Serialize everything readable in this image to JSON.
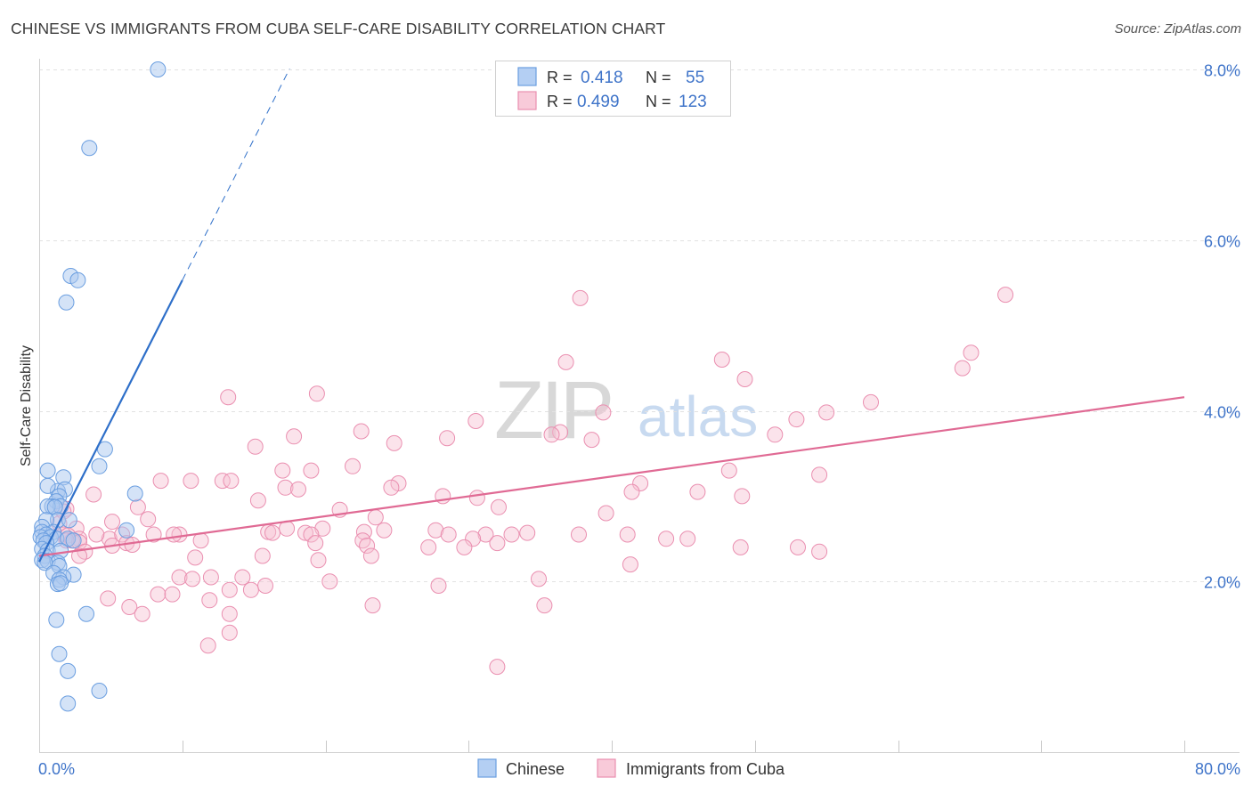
{
  "header": {
    "title": "CHINESE VS IMMIGRANTS FROM CUBA SELF-CARE DISABILITY CORRELATION CHART",
    "source": "Source: ZipAtlas.com"
  },
  "watermark": {
    "zip": "ZIP",
    "atlas": "atlas"
  },
  "legend_box": {
    "rows": [
      {
        "r_label": "R =",
        "r_value": "0.418",
        "n_label": "N =",
        "n_value": "55",
        "series": "Chinese"
      },
      {
        "r_label": "R =",
        "r_value": "0.499",
        "n_label": "N =",
        "n_value": "123",
        "series": "Immigrants from Cuba"
      }
    ]
  },
  "colors": {
    "chinese_fill": "#aac8f0",
    "chinese_stroke": "#6a9ee0",
    "chinese_line": "#2e6fc9",
    "cuba_fill": "#f6c0d2",
    "cuba_stroke": "#ea8fb0",
    "cuba_line": "#e06a94",
    "axis_value": "#3f74c9"
  },
  "chart_data": {
    "type": "scatter",
    "title": "CHINESE VS IMMIGRANTS FROM CUBA SELF-CARE DISABILITY CORRELATION CHART",
    "xlabel": "",
    "ylabel": "Self-Care Disability",
    "xlim": [
      0,
      80
    ],
    "ylim": [
      0,
      8
    ],
    "x_tick_labels": [
      "0.0%",
      "80.0%"
    ],
    "y_ticks": [
      2,
      4,
      6,
      8
    ],
    "y_tick_labels": [
      "2.0%",
      "4.0%",
      "6.0%",
      "8.0%"
    ],
    "grid": true,
    "legend": [
      "Chinese",
      "Immigrants from Cuba"
    ],
    "series": [
      {
        "name": "Chinese",
        "r": 0.418,
        "n": 55,
        "trend": {
          "x": [
            0.0,
            10.0
          ],
          "y": [
            2.23,
            5.53
          ]
        },
        "trend_dashed": {
          "x": [
            10.0,
            17.5
          ],
          "y": [
            5.53,
            8.01
          ]
        },
        "points": [
          [
            8.3,
            8.0
          ],
          [
            3.5,
            7.08
          ],
          [
            2.2,
            5.58
          ],
          [
            2.7,
            5.53
          ],
          [
            1.9,
            5.27
          ],
          [
            4.6,
            3.55
          ],
          [
            4.2,
            3.35
          ],
          [
            0.6,
            3.3
          ],
          [
            1.7,
            3.22
          ],
          [
            6.7,
            3.03
          ],
          [
            1.3,
            3.06
          ],
          [
            1.8,
            3.08
          ],
          [
            0.6,
            3.12
          ],
          [
            1.4,
            3.0
          ],
          [
            1.2,
            2.94
          ],
          [
            0.9,
            2.88
          ],
          [
            1.5,
            2.88
          ],
          [
            0.6,
            2.88
          ],
          [
            1.1,
            2.87
          ],
          [
            1.3,
            2.72
          ],
          [
            0.5,
            2.72
          ],
          [
            2.1,
            2.72
          ],
          [
            0.2,
            2.64
          ],
          [
            0.2,
            2.58
          ],
          [
            1.0,
            2.58
          ],
          [
            6.1,
            2.6
          ],
          [
            0.5,
            2.55
          ],
          [
            0.1,
            2.52
          ],
          [
            0.8,
            2.52
          ],
          [
            1.2,
            2.5
          ],
          [
            2.0,
            2.5
          ],
          [
            0.3,
            2.48
          ],
          [
            2.4,
            2.48
          ],
          [
            0.5,
            2.45
          ],
          [
            0.2,
            2.38
          ],
          [
            0.6,
            2.36
          ],
          [
            1.5,
            2.36
          ],
          [
            0.4,
            2.3
          ],
          [
            0.2,
            2.25
          ],
          [
            0.6,
            2.24
          ],
          [
            1.3,
            2.22
          ],
          [
            0.4,
            2.22
          ],
          [
            1.4,
            2.18
          ],
          [
            1.0,
            2.1
          ],
          [
            2.4,
            2.08
          ],
          [
            1.7,
            2.05
          ],
          [
            1.4,
            2.02
          ],
          [
            1.3,
            1.97
          ],
          [
            1.5,
            1.98
          ],
          [
            3.3,
            1.62
          ],
          [
            1.2,
            1.55
          ],
          [
            1.4,
            1.15
          ],
          [
            2.0,
            0.95
          ],
          [
            4.2,
            0.72
          ],
          [
            2.0,
            0.57
          ]
        ]
      },
      {
        "name": "Immigrants from Cuba",
        "r": 0.499,
        "n": 123,
        "trend": {
          "x": [
            0.0,
            80.0
          ],
          "y": [
            2.3,
            4.16
          ]
        },
        "points": [
          [
            67.5,
            5.36
          ],
          [
            37.8,
            5.32
          ],
          [
            65.1,
            4.68
          ],
          [
            64.5,
            4.5
          ],
          [
            36.8,
            4.57
          ],
          [
            47.7,
            4.6
          ],
          [
            49.3,
            4.37
          ],
          [
            19.4,
            4.2
          ],
          [
            13.2,
            4.16
          ],
          [
            58.1,
            4.1
          ],
          [
            55.0,
            3.98
          ],
          [
            39.4,
            3.98
          ],
          [
            52.9,
            3.9
          ],
          [
            30.5,
            3.88
          ],
          [
            22.5,
            3.76
          ],
          [
            36.4,
            3.75
          ],
          [
            35.8,
            3.72
          ],
          [
            51.4,
            3.72
          ],
          [
            17.8,
            3.7
          ],
          [
            28.5,
            3.68
          ],
          [
            38.6,
            3.66
          ],
          [
            24.8,
            3.62
          ],
          [
            15.1,
            3.58
          ],
          [
            21.9,
            3.35
          ],
          [
            17.0,
            3.3
          ],
          [
            19.0,
            3.3
          ],
          [
            48.2,
            3.3
          ],
          [
            54.5,
            3.25
          ],
          [
            8.5,
            3.18
          ],
          [
            10.6,
            3.18
          ],
          [
            12.8,
            3.18
          ],
          [
            13.4,
            3.18
          ],
          [
            25.1,
            3.15
          ],
          [
            42.0,
            3.15
          ],
          [
            24.6,
            3.1
          ],
          [
            17.2,
            3.1
          ],
          [
            18.1,
            3.08
          ],
          [
            41.4,
            3.05
          ],
          [
            46.0,
            3.05
          ],
          [
            3.8,
            3.02
          ],
          [
            28.2,
            3.0
          ],
          [
            30.6,
            2.98
          ],
          [
            49.1,
            3.0
          ],
          [
            15.3,
            2.95
          ],
          [
            32.1,
            2.87
          ],
          [
            6.9,
            2.87
          ],
          [
            1.9,
            2.85
          ],
          [
            1.7,
            2.82
          ],
          [
            39.6,
            2.8
          ],
          [
            21.0,
            2.84
          ],
          [
            7.6,
            2.73
          ],
          [
            23.5,
            2.75
          ],
          [
            5.1,
            2.7
          ],
          [
            1.4,
            2.68
          ],
          [
            2.6,
            2.62
          ],
          [
            17.3,
            2.62
          ],
          [
            19.8,
            2.62
          ],
          [
            24.1,
            2.6
          ],
          [
            27.7,
            2.6
          ],
          [
            16.0,
            2.58
          ],
          [
            16.3,
            2.57
          ],
          [
            18.6,
            2.57
          ],
          [
            19.0,
            2.55
          ],
          [
            22.7,
            2.58
          ],
          [
            9.8,
            2.55
          ],
          [
            8.0,
            2.55
          ],
          [
            9.4,
            2.55
          ],
          [
            1.7,
            2.55
          ],
          [
            2.0,
            2.54
          ],
          [
            28.6,
            2.55
          ],
          [
            31.2,
            2.55
          ],
          [
            33.0,
            2.55
          ],
          [
            34.1,
            2.57
          ],
          [
            2.8,
            2.5
          ],
          [
            4.9,
            2.5
          ],
          [
            41.1,
            2.55
          ],
          [
            43.8,
            2.5
          ],
          [
            5.8,
            2.55
          ],
          [
            4.0,
            2.55
          ],
          [
            37.7,
            2.55
          ],
          [
            45.3,
            2.5
          ],
          [
            11.3,
            2.48
          ],
          [
            22.6,
            2.48
          ],
          [
            2.3,
            2.48
          ],
          [
            6.1,
            2.45
          ],
          [
            2.8,
            2.46
          ],
          [
            1.9,
            2.48
          ],
          [
            30.3,
            2.5
          ],
          [
            5.1,
            2.42
          ],
          [
            6.5,
            2.43
          ],
          [
            32.0,
            2.45
          ],
          [
            19.3,
            2.45
          ],
          [
            22.9,
            2.42
          ],
          [
            27.2,
            2.4
          ],
          [
            29.7,
            2.4
          ],
          [
            49.0,
            2.4
          ],
          [
            53.0,
            2.4
          ],
          [
            54.5,
            2.35
          ],
          [
            3.2,
            2.35
          ],
          [
            2.8,
            2.3
          ],
          [
            23.2,
            2.3
          ],
          [
            15.6,
            2.3
          ],
          [
            10.9,
            2.28
          ],
          [
            19.5,
            2.25
          ],
          [
            41.3,
            2.2
          ],
          [
            14.2,
            2.05
          ],
          [
            9.8,
            2.05
          ],
          [
            10.7,
            2.03
          ],
          [
            12.0,
            2.05
          ],
          [
            34.9,
            2.03
          ],
          [
            20.3,
            2.0
          ],
          [
            27.9,
            1.95
          ],
          [
            15.8,
            1.95
          ],
          [
            13.3,
            1.9
          ],
          [
            14.8,
            1.9
          ],
          [
            8.3,
            1.85
          ],
          [
            9.3,
            1.85
          ],
          [
            4.8,
            1.8
          ],
          [
            11.9,
            1.78
          ],
          [
            23.3,
            1.72
          ],
          [
            35.3,
            1.72
          ],
          [
            6.3,
            1.7
          ],
          [
            13.3,
            1.62
          ],
          [
            7.2,
            1.62
          ],
          [
            13.3,
            1.4
          ],
          [
            11.8,
            1.25
          ],
          [
            32.0,
            1.0
          ]
        ]
      }
    ]
  },
  "bottom_legend": {
    "items": [
      "Chinese",
      "Immigrants from Cuba"
    ]
  }
}
